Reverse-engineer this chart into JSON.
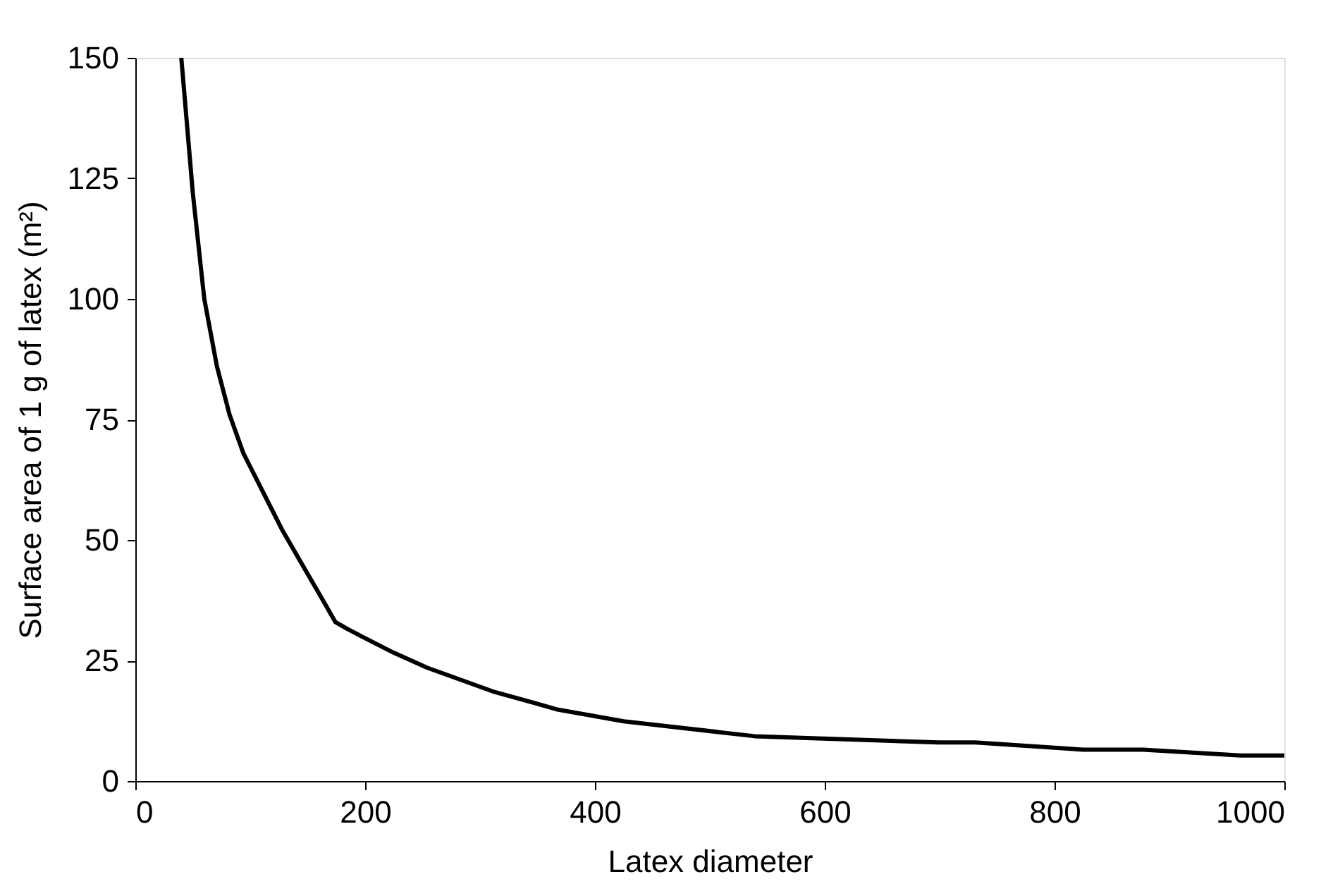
{
  "chart_data": {
    "type": "line",
    "xlabel": "Latex diameter",
    "ylabel": "Surface area of 1 g of latex (m²)",
    "xlim": [
      0,
      1000
    ],
    "xticks": [
      0,
      200,
      400,
      600,
      800,
      1000
    ],
    "ylim": [
      0,
      150
    ],
    "yticks": [
      0,
      25,
      50,
      75,
      100,
      125,
      150
    ],
    "grid": false,
    "marker": "none",
    "line_style": "solid",
    "series": [
      {
        "color": "#000000",
        "x": [
          40,
          50,
          60,
          71,
          82,
          94,
          111,
          128,
          145,
          162,
          174,
          185,
          197,
          225,
          254,
          311,
          368,
          425,
          539,
          699,
          731,
          825,
          877,
          962,
          1000
        ],
        "values": [
          150,
          122,
          100,
          86,
          76,
          68,
          60,
          52,
          45,
          38,
          33,
          31.5,
          30,
          26.6,
          23.5,
          18.6,
          14.8,
          12.4,
          9.3,
          8,
          8,
          6.5,
          6.5,
          5.3,
          5.3
        ]
      }
    ]
  }
}
